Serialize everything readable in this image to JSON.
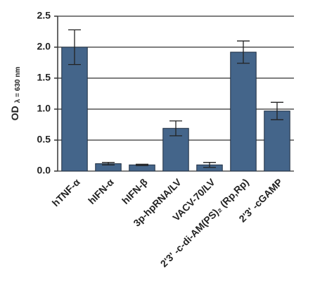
{
  "chart_data": {
    "type": "bar",
    "y_label": "OD",
    "y_label_sub": "λ = 630 nm",
    "categories": [
      "hTNF-α",
      "hIFN-α",
      "hIFN-β",
      "3p-hpRNA/LV",
      "VACV-70/LV",
      "2'3' -c-di-AM(PS)₂ (Rp,Rp)",
      "2'3' -cGAMP"
    ],
    "values": [
      2.0,
      0.12,
      0.1,
      0.69,
      0.1,
      1.92,
      0.97
    ],
    "errors": [
      0.28,
      0.02,
      0.01,
      0.12,
      0.04,
      0.18,
      0.14
    ],
    "color": "#44658a",
    "ylim": [
      0,
      2.5
    ],
    "yticks": [
      {
        "value": 0,
        "label": "0.0"
      },
      0.5,
      {
        "value": 1,
        "label": "1.0"
      },
      1.5,
      {
        "value": 2,
        "label": "2.0"
      },
      2.5
    ],
    "grid": true
  }
}
